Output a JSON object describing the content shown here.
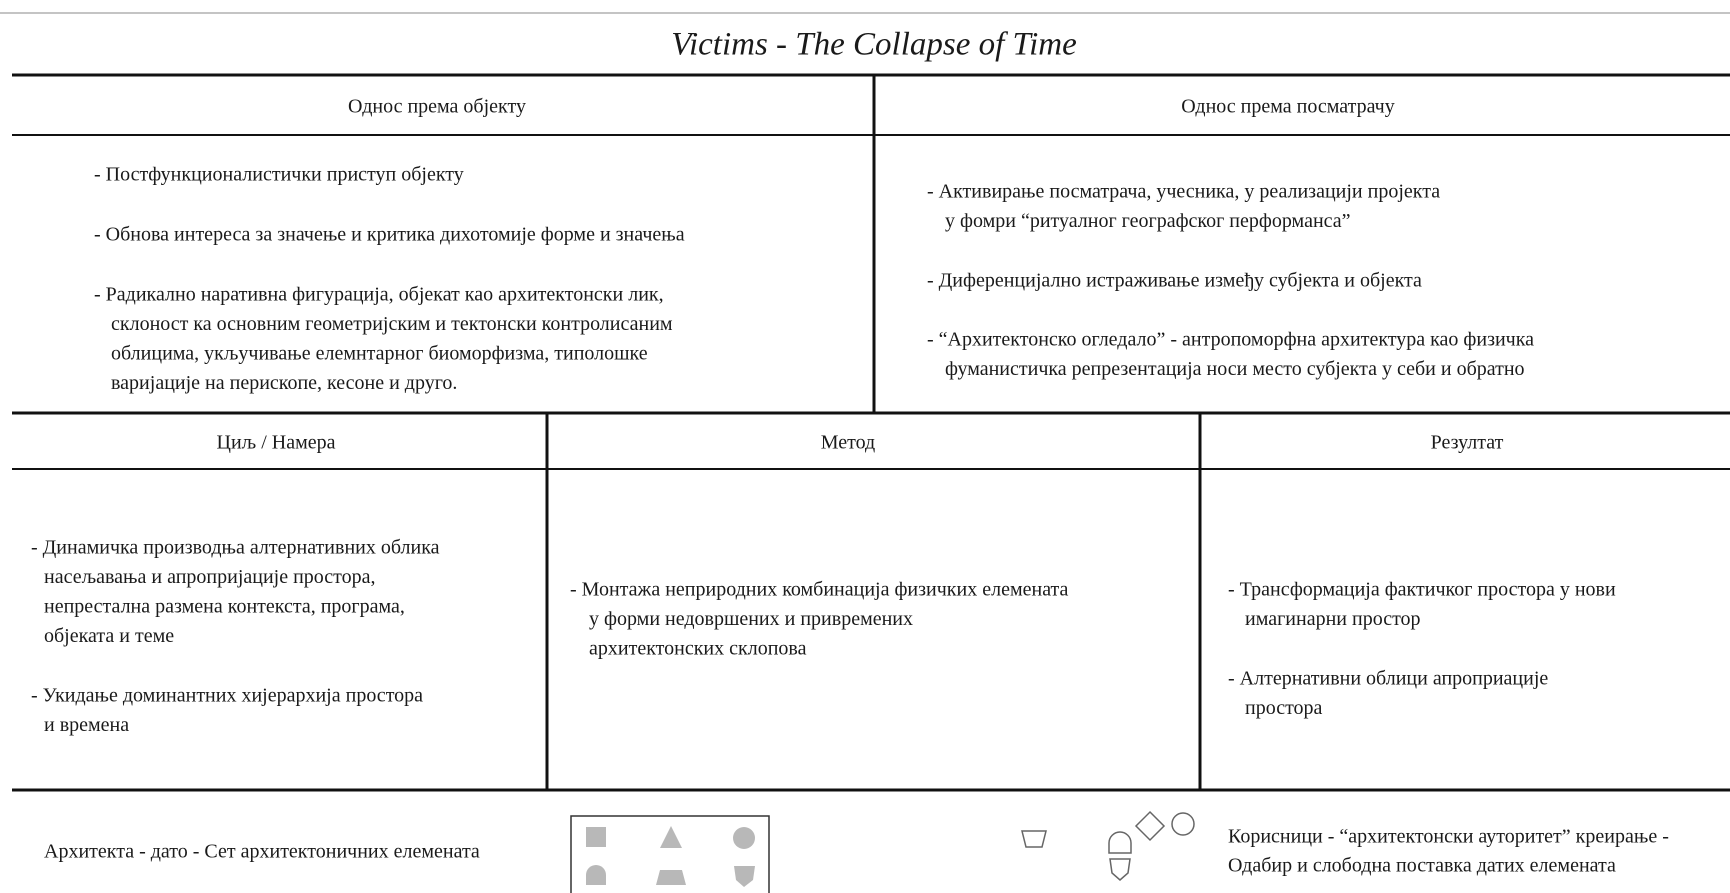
{
  "title": "Victims - The Collapse of Time",
  "top_row": [
    {
      "header": "Однос према објекту",
      "items": [
        [
          "- Постфункционалистички приступ објекту"
        ],
        [
          "- Обнова интереса за значење и критика дихотомије форме и значења"
        ],
        [
          "-  Радикално наративна фигурација, објекат као архитектонски лик,",
          "склоност ка основним геометријским и тектонски контролисаним",
          "облицима, укључивање елемнтарног биоморфизма, типолошке",
          "варијације на перископе, кесоне и друго."
        ]
      ]
    },
    {
      "header": "Однос према посматрачу",
      "items": [
        [
          "- Активирање посматрача, учесника, у реализацији пројекта",
          "у фомри “ритуалног географског перформанса”"
        ],
        [
          "- Диференцијално истраживање између субјекта и објекта"
        ],
        [
          "- “Архитектонско огледало” - антропоморфна архитектура као физичка",
          "фуманистичка репрезентација носи место субјекта у себи и обратно"
        ]
      ]
    }
  ],
  "middle_row": [
    {
      "header": "Циљ / Намера",
      "items": [
        [
          "- Динамичка производња алтернативних облика",
          "насељавања и апропријације простора,",
          "непрестална размена контекста, програма,",
          "објеката и теме"
        ],
        [
          "- Укидање доминантних хијерархија простора",
          "и времена"
        ]
      ]
    },
    {
      "header": "Метод",
      "items": [
        [
          "- Монтажа неприродних комбинација физичких елемената",
          "у форми недовршених и привремених",
          "архитектонских склопова"
        ]
      ]
    },
    {
      "header": "Резултат",
      "items": [
        [
          "- Трансформација фактичког простора у нови",
          "имагинарни простор"
        ],
        [
          "- Алтернативни облици апроприације",
          "простора"
        ]
      ]
    }
  ],
  "footer": {
    "left": "Архитекта - дато - Сет архитектоничних елемената",
    "right": [
      "Корисници - “архитектонски ауторитет” креирање -",
      "Одабир и слободна поставка датих елемената"
    ]
  }
}
